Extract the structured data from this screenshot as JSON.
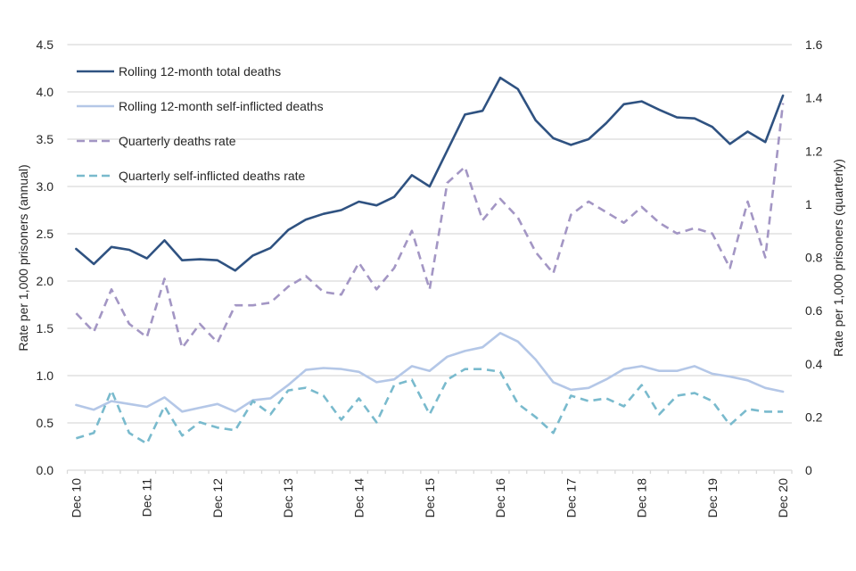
{
  "chart_data": {
    "type": "line",
    "title": "",
    "xlabel": "",
    "ylabel_left": "Rate per 1,000 prisoners (annual)",
    "ylabel_right": "Rate per 1,000 prisoners (quarterly)",
    "ylim_left": [
      0,
      4.5
    ],
    "ylim_right": [
      0,
      1.6
    ],
    "yticks_left": [
      "0.0",
      "0.5",
      "1.0",
      "1.5",
      "2.0",
      "2.5",
      "3.0",
      "3.5",
      "4.0",
      "4.5"
    ],
    "yticks_right": [
      "0",
      "0.2",
      "0.4",
      "0.6",
      "0.8",
      "1",
      "1.2",
      "1.4",
      "1.6"
    ],
    "grid": true,
    "legend_position": "top-left",
    "x_tick_labels": [
      "Dec 10",
      "Dec 11",
      "Dec 12",
      "Dec 13",
      "Dec 14",
      "Dec 15",
      "Dec 16",
      "Dec 17",
      "Dec 18",
      "Dec 19",
      "Dec 20"
    ],
    "x_tick_label_every": 4,
    "num_quarters": 41,
    "series": [
      {
        "name": "Rolling 12-month total deaths",
        "axis": "left",
        "style": "solid",
        "color": "#2F5281",
        "values": [
          2.34,
          2.18,
          2.36,
          2.33,
          2.24,
          2.43,
          2.22,
          2.23,
          2.22,
          2.11,
          2.27,
          2.35,
          2.54,
          2.65,
          2.71,
          2.75,
          2.84,
          2.8,
          2.89,
          3.12,
          3.0,
          3.38,
          3.76,
          3.8,
          4.15,
          4.03,
          3.7,
          3.51,
          3.44,
          3.5,
          3.67,
          3.87,
          3.9,
          3.81,
          3.73,
          3.72,
          3.63,
          3.45,
          3.58,
          3.47,
          3.96
        ]
      },
      {
        "name": "Rolling 12-month self-inflicted deaths",
        "axis": "left",
        "style": "solid",
        "color": "#B4C7E7",
        "values": [
          0.69,
          0.64,
          0.73,
          0.7,
          0.67,
          0.77,
          0.62,
          0.66,
          0.7,
          0.62,
          0.74,
          0.76,
          0.9,
          1.06,
          1.08,
          1.07,
          1.04,
          0.93,
          0.96,
          1.1,
          1.05,
          1.2,
          1.26,
          1.3,
          1.45,
          1.36,
          1.17,
          0.93,
          0.85,
          0.87,
          0.96,
          1.07,
          1.1,
          1.05,
          1.05,
          1.1,
          1.02,
          0.99,
          0.95,
          0.87,
          0.83
        ]
      },
      {
        "name": "Quarterly deaths rate",
        "axis": "right",
        "style": "dashed",
        "color": "#A396C4",
        "values": [
          0.59,
          0.52,
          0.68,
          0.55,
          0.5,
          0.72,
          0.46,
          0.55,
          0.48,
          0.62,
          0.62,
          0.63,
          0.69,
          0.73,
          0.67,
          0.66,
          0.78,
          0.68,
          0.76,
          0.9,
          0.68,
          1.08,
          1.14,
          0.94,
          1.02,
          0.95,
          0.82,
          0.74,
          0.96,
          1.01,
          0.97,
          0.93,
          0.99,
          0.93,
          0.89,
          0.91,
          0.89,
          0.76,
          1.01,
          0.8,
          1.38
        ]
      },
      {
        "name": "Quarterly self-inflicted deaths rate",
        "axis": "right",
        "style": "dashed",
        "color": "#79BACD",
        "values": [
          0.12,
          0.14,
          0.3,
          0.14,
          0.1,
          0.24,
          0.13,
          0.18,
          0.16,
          0.15,
          0.26,
          0.21,
          0.3,
          0.31,
          0.28,
          0.19,
          0.27,
          0.18,
          0.32,
          0.34,
          0.21,
          0.34,
          0.38,
          0.38,
          0.37,
          0.25,
          0.2,
          0.14,
          0.28,
          0.26,
          0.27,
          0.24,
          0.32,
          0.21,
          0.28,
          0.29,
          0.26,
          0.17,
          0.23,
          0.22,
          0.22
        ]
      }
    ]
  }
}
